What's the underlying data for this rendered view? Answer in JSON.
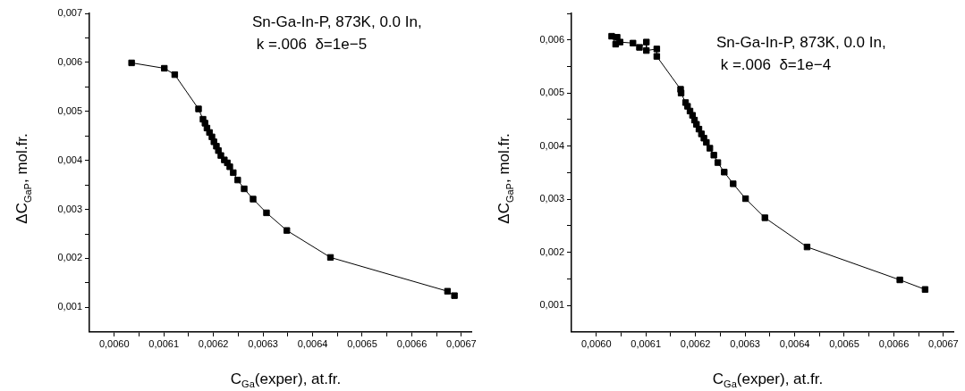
{
  "chart_data": [
    {
      "type": "line",
      "xlabel": "C$_{Ga}$(exper), at.fr.",
      "ylabel": "ΔC$_{GaP}$, mol.fr.",
      "annotations": [
        "Sn-Ga-In-P, 873K, 0.0 In,",
        " k =.006  δ=1e−5"
      ],
      "marker": "square",
      "line_style": "solid",
      "grid": false,
      "legend": false,
      "xlim": [
        0.00595,
        0.00672
      ],
      "ylim": [
        0.0005,
        0.007
      ],
      "xticks": [
        {
          "value": 0.006,
          "label": "0,0060"
        },
        {
          "value": 0.00605,
          "label": null
        },
        {
          "value": 0.0061,
          "label": "0,0061"
        },
        {
          "value": 0.00615,
          "label": null
        },
        {
          "value": 0.0062,
          "label": "0,0062"
        },
        {
          "value": 0.00625,
          "label": null
        },
        {
          "value": 0.0063,
          "label": "0,0063"
        },
        {
          "value": 0.00635,
          "label": null
        },
        {
          "value": 0.0064,
          "label": "0,0064"
        },
        {
          "value": 0.00645,
          "label": null
        },
        {
          "value": 0.0065,
          "label": "0,0065"
        },
        {
          "value": 0.00655,
          "label": null
        },
        {
          "value": 0.0066,
          "label": "0,0066"
        },
        {
          "value": 0.00665,
          "label": null
        },
        {
          "value": 0.0067,
          "label": "0,0067"
        }
      ],
      "yticks": [
        {
          "value": 0.001,
          "label": "0,001"
        },
        {
          "value": 0.0015,
          "label": null
        },
        {
          "value": 0.002,
          "label": "0,002"
        },
        {
          "value": 0.0025,
          "label": null
        },
        {
          "value": 0.003,
          "label": "0,003"
        },
        {
          "value": 0.0035,
          "label": null
        },
        {
          "value": 0.004,
          "label": "0,004"
        },
        {
          "value": 0.0045,
          "label": null
        },
        {
          "value": 0.005,
          "label": "0,005"
        },
        {
          "value": 0.0055,
          "label": null
        },
        {
          "value": 0.006,
          "label": "0,006"
        },
        {
          "value": 0.0065,
          "label": null
        },
        {
          "value": 0.007,
          "label": "0,007"
        }
      ],
      "series": [
        {
          "color": "#000000",
          "x": [
            0.006035,
            0.006101,
            0.006122,
            0.00617,
            0.006179,
            0.006183,
            0.006187,
            0.006192,
            0.006197,
            0.006201,
            0.006206,
            0.00621,
            0.006215,
            0.006222,
            0.006228,
            0.006233,
            0.00624,
            0.006249,
            0.006262,
            0.00628,
            0.006307,
            0.006348,
            0.006436,
            0.006672,
            0.006686
          ],
          "values": [
            0.00599,
            0.00588,
            0.00575,
            0.00505,
            0.00484,
            0.00476,
            0.00466,
            0.00457,
            0.00448,
            0.00438,
            0.00429,
            0.0042,
            0.0041,
            0.00401,
            0.00395,
            0.00387,
            0.00375,
            0.0036,
            0.00342,
            0.00321,
            0.00293,
            0.00257,
            0.00202,
            0.00133,
            0.00124
          ]
        }
      ]
    },
    {
      "type": "line",
      "xlabel": "C$_{Ga}$(exper), at.fr.",
      "ylabel": "ΔC$_{GaP}$, mol.fr.",
      "annotations": [
        "Sn-Ga-In-P, 873K, 0.0 In,",
        " k =.006  δ=1e−4"
      ],
      "marker": "square",
      "line_style": "solid",
      "grid": false,
      "legend": false,
      "xlim": [
        0.00595,
        0.00672
      ],
      "ylim": [
        0.0005,
        0.0065
      ],
      "xticks": [
        {
          "value": 0.006,
          "label": "0,0060"
        },
        {
          "value": 0.00605,
          "label": null
        },
        {
          "value": 0.0061,
          "label": "0,0061"
        },
        {
          "value": 0.00615,
          "label": null
        },
        {
          "value": 0.0062,
          "label": "0,0062"
        },
        {
          "value": 0.00625,
          "label": null
        },
        {
          "value": 0.0063,
          "label": "0,0063"
        },
        {
          "value": 0.00635,
          "label": null
        },
        {
          "value": 0.0064,
          "label": "0,0064"
        },
        {
          "value": 0.00645,
          "label": null
        },
        {
          "value": 0.0065,
          "label": "0,0065"
        },
        {
          "value": 0.00655,
          "label": null
        },
        {
          "value": 0.0066,
          "label": "0,0066"
        },
        {
          "value": 0.00665,
          "label": null
        },
        {
          "value": 0.0067,
          "label": "0,0067"
        }
      ],
      "yticks": [
        {
          "value": 0.001,
          "label": "0,001"
        },
        {
          "value": 0.0015,
          "label": null
        },
        {
          "value": 0.002,
          "label": "0,002"
        },
        {
          "value": 0.0025,
          "label": null
        },
        {
          "value": 0.003,
          "label": "0,003"
        },
        {
          "value": 0.0035,
          "label": null
        },
        {
          "value": 0.004,
          "label": "0,004"
        },
        {
          "value": 0.0045,
          "label": null
        },
        {
          "value": 0.005,
          "label": "0,005"
        },
        {
          "value": 0.0055,
          "label": null
        },
        {
          "value": 0.006,
          "label": "0,006"
        },
        {
          "value": 0.0065,
          "label": null
        }
      ],
      "series": [
        {
          "color": "#000000",
          "x": [
            0.006031,
            0.006039,
            0.006042,
            0.006048,
            0.006074,
            0.006087,
            0.006101,
            0.006101,
            0.006122,
            0.006122,
            0.00617,
            0.006171,
            0.00618,
            0.006184,
            0.006189,
            0.006194,
            0.006198,
            0.006202,
            0.006207,
            0.006212,
            0.006217,
            0.006222,
            0.006229,
            0.006237,
            0.006245,
            0.006258,
            0.006276,
            0.006301,
            0.00634,
            0.006425,
            0.006612,
            0.006663
          ],
          "values": [
            0.00607,
            0.00592,
            0.00605,
            0.00596,
            0.00594,
            0.00586,
            0.00596,
            0.0058,
            0.00583,
            0.00569,
            0.00507,
            0.005,
            0.00482,
            0.00475,
            0.00466,
            0.00458,
            0.00449,
            0.00441,
            0.00432,
            0.00423,
            0.00415,
            0.00407,
            0.00396,
            0.00383,
            0.00369,
            0.00351,
            0.00329,
            0.00301,
            0.00265,
            0.0021,
            0.00148,
            0.0013
          ]
        }
      ]
    }
  ]
}
